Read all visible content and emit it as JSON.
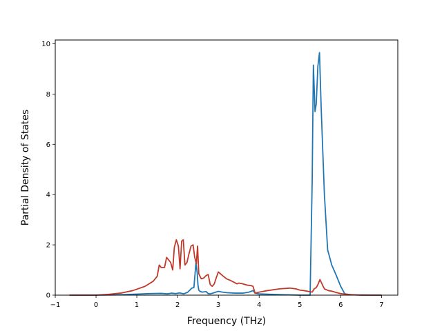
{
  "chart_data": {
    "type": "line",
    "title": "",
    "xlabel": "Frequency (THz)",
    "ylabel": "Partial Density of States",
    "xlim": [
      -1,
      7.4
    ],
    "ylim": [
      0,
      10.15
    ],
    "xticks": [
      -1,
      0,
      1,
      2,
      3,
      4,
      5,
      6,
      7
    ],
    "yticks": [
      0,
      2,
      4,
      6,
      8,
      10
    ],
    "grid": false,
    "legend": "none",
    "series": [
      {
        "color": "#1f77b4",
        "x": [
          -0.65,
          0.0,
          0.5,
          1.0,
          1.3,
          1.6,
          1.75,
          1.85,
          1.95,
          2.05,
          2.15,
          2.25,
          2.35,
          2.4,
          2.45,
          2.48,
          2.5,
          2.52,
          2.55,
          2.6,
          2.7,
          2.75,
          2.8,
          2.9,
          3.0,
          3.1,
          3.2,
          3.4,
          3.6,
          3.75,
          3.85,
          3.9,
          4.0,
          4.5,
          5.0,
          5.25,
          5.3,
          5.33,
          5.37,
          5.4,
          5.44,
          5.48,
          5.52,
          5.6,
          5.68,
          5.78,
          5.9,
          6.0,
          6.1,
          6.3,
          7.0
        ],
        "y": [
          0.0,
          0.0,
          0.01,
          0.04,
          0.06,
          0.07,
          0.05,
          0.08,
          0.06,
          0.09,
          0.05,
          0.12,
          0.28,
          0.3,
          1.28,
          0.9,
          0.4,
          0.2,
          0.15,
          0.12,
          0.14,
          0.06,
          0.05,
          0.1,
          0.15,
          0.12,
          0.1,
          0.08,
          0.08,
          0.12,
          0.18,
          0.08,
          0.05,
          0.02,
          0.0,
          0.0,
          4.5,
          9.15,
          7.3,
          7.6,
          9.1,
          9.65,
          7.5,
          4.0,
          1.8,
          1.2,
          0.75,
          0.35,
          0.05,
          0.01,
          0.0
        ]
      },
      {
        "color": "#c0392b",
        "x": [
          -0.65,
          0.0,
          0.3,
          0.6,
          0.9,
          1.2,
          1.4,
          1.5,
          1.55,
          1.6,
          1.68,
          1.73,
          1.78,
          1.83,
          1.88,
          1.92,
          1.97,
          2.02,
          2.06,
          2.1,
          2.14,
          2.18,
          2.23,
          2.28,
          2.33,
          2.38,
          2.42,
          2.46,
          2.49,
          2.52,
          2.58,
          2.64,
          2.7,
          2.75,
          2.8,
          2.85,
          2.9,
          2.95,
          3.0,
          3.1,
          3.2,
          3.3,
          3.4,
          3.45,
          3.5,
          3.6,
          3.7,
          3.8,
          3.85,
          3.9,
          4.0,
          4.2,
          4.5,
          4.75,
          4.9,
          5.0,
          5.1,
          5.2,
          5.3,
          5.35,
          5.4,
          5.45,
          5.49,
          5.52,
          5.56,
          5.6,
          5.7,
          5.8,
          5.9,
          6.0,
          6.2,
          6.5,
          7.0
        ],
        "y": [
          0.0,
          0.0,
          0.03,
          0.08,
          0.18,
          0.35,
          0.55,
          0.75,
          1.2,
          1.1,
          1.1,
          1.5,
          1.4,
          1.3,
          1.0,
          1.9,
          2.2,
          1.95,
          1.05,
          2.15,
          2.2,
          1.2,
          1.3,
          1.65,
          1.95,
          2.0,
          1.5,
          1.25,
          1.95,
          0.85,
          0.65,
          0.68,
          0.78,
          0.82,
          0.42,
          0.35,
          0.45,
          0.7,
          0.92,
          0.78,
          0.65,
          0.58,
          0.5,
          0.45,
          0.48,
          0.45,
          0.4,
          0.38,
          0.35,
          0.08,
          0.12,
          0.18,
          0.25,
          0.28,
          0.25,
          0.2,
          0.18,
          0.15,
          0.12,
          0.25,
          0.3,
          0.45,
          0.62,
          0.52,
          0.38,
          0.25,
          0.18,
          0.15,
          0.1,
          0.06,
          0.02,
          0.0,
          0.0
        ]
      }
    ]
  }
}
